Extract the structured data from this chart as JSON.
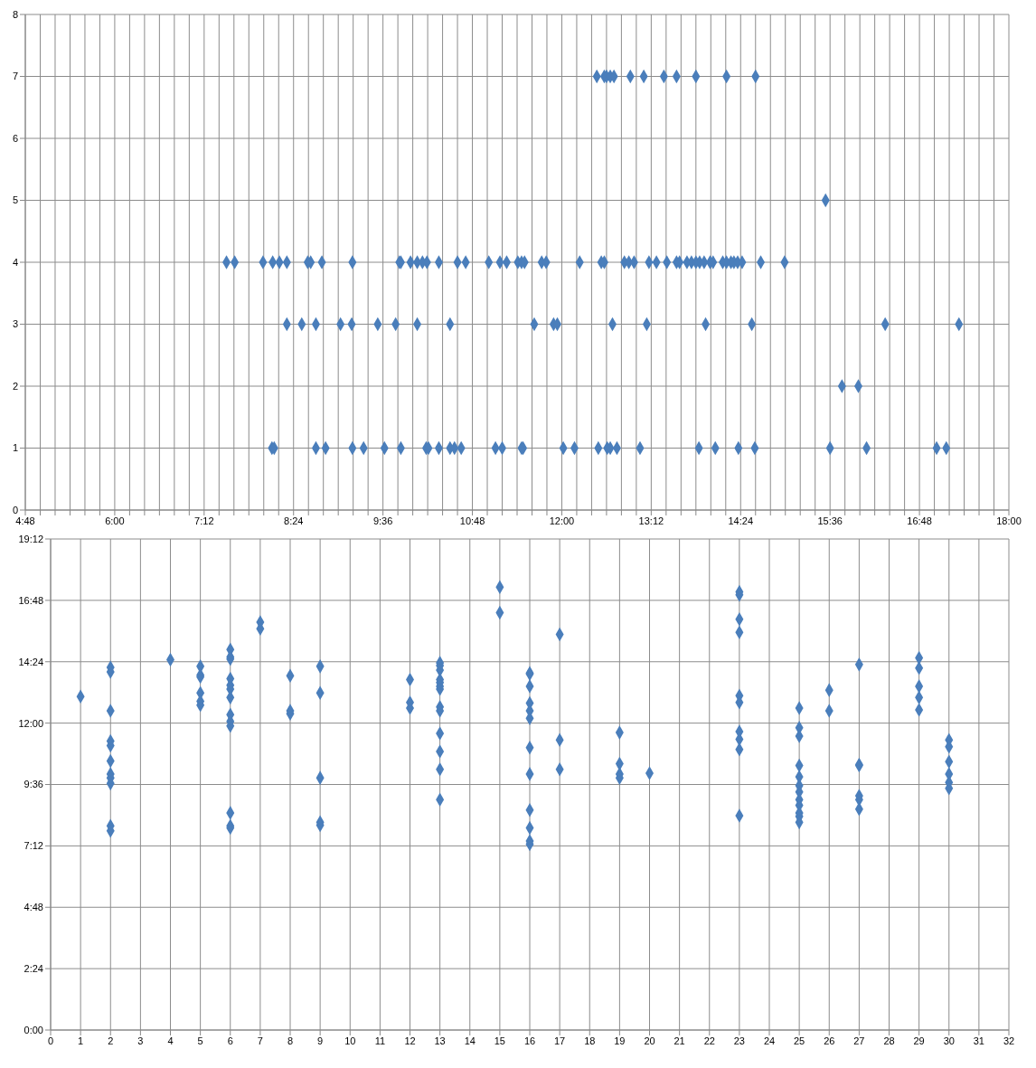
{
  "chart_data": [
    {
      "type": "scatter",
      "color": "#4a7ebb",
      "marker": "diamond",
      "grid": true,
      "x": [
        7.5,
        7.61,
        7.99,
        8.12,
        8.21,
        8.31,
        8.59,
        8.63,
        8.78,
        9.19,
        9.82,
        9.84,
        9.97,
        10.06,
        10.13,
        10.19,
        10.35,
        10.6,
        10.71,
        11.02,
        11.17,
        11.26,
        11.41,
        11.46,
        11.5,
        11.73,
        11.79,
        12.24,
        12.53,
        12.57,
        12.84,
        12.9,
        12.97,
        13.17,
        13.27,
        13.41,
        13.54,
        13.58,
        13.68,
        13.74,
        13.8,
        13.85,
        13.91,
        13.99,
        14.03,
        14.16,
        14.21,
        14.27,
        14.31,
        14.36,
        14.42,
        14.67,
        14.99,
        12.47,
        12.57,
        12.6,
        12.65,
        12.7,
        12.92,
        13.1,
        13.37,
        13.54,
        13.8,
        14.21,
        14.6,
        15.54,
        8.31,
        8.51,
        8.7,
        9.03,
        9.18,
        9.53,
        9.77,
        10.06,
        10.5,
        11.63,
        11.89,
        11.94,
        12.68,
        13.14,
        13.93,
        14.55,
        16.34,
        17.33,
        15.76,
        15.98,
        8.11,
        8.14,
        8.7,
        8.83,
        9.19,
        9.34,
        9.62,
        9.84,
        10.18,
        10.21,
        10.35,
        10.5,
        10.56,
        10.65,
        11.11,
        11.2,
        11.46,
        11.48,
        12.02,
        12.17,
        12.49,
        12.61,
        12.65,
        12.74,
        13.05,
        13.84,
        14.06,
        14.37,
        14.59,
        15.6,
        16.09,
        17.03,
        17.16
      ],
      "values": [
        4,
        4,
        4,
        4,
        4,
        4,
        4,
        4,
        4,
        4,
        4,
        4,
        4,
        4,
        4,
        4,
        4,
        4,
        4,
        4,
        4,
        4,
        4,
        4,
        4,
        4,
        4,
        4,
        4,
        4,
        4,
        4,
        4,
        4,
        4,
        4,
        4,
        4,
        4,
        4,
        4,
        4,
        4,
        4,
        4,
        4,
        4,
        4,
        4,
        4,
        4,
        4,
        4,
        7,
        7,
        7,
        7,
        7,
        7,
        7,
        7,
        7,
        7,
        7,
        7,
        5,
        3,
        3,
        3,
        3,
        3,
        3,
        3,
        3,
        3,
        3,
        3,
        3,
        3,
        3,
        3,
        3,
        3,
        3,
        2,
        2,
        1,
        1,
        1,
        1,
        1,
        1,
        1,
        1,
        1,
        1,
        1,
        1,
        1,
        1,
        1,
        1,
        1,
        1,
        1,
        1,
        1,
        1,
        1,
        1,
        1,
        1,
        1,
        1,
        1,
        1,
        1,
        1,
        1
      ],
      "xlim": [
        4.8,
        18
      ],
      "xticks": [
        {
          "value": 4.8,
          "label": "4:48"
        },
        {
          "value": 5.0,
          "label": null
        },
        {
          "value": 5.2,
          "label": null
        },
        {
          "value": 5.4,
          "label": null
        },
        {
          "value": 5.6,
          "label": null
        },
        {
          "value": 5.8,
          "label": null
        },
        {
          "value": 6.0,
          "label": "6:00"
        },
        {
          "value": 6.2,
          "label": null
        },
        {
          "value": 6.4,
          "label": null
        },
        {
          "value": 6.6,
          "label": null
        },
        {
          "value": 6.8,
          "label": null
        },
        {
          "value": 7.0,
          "label": null
        },
        {
          "value": 7.2,
          "label": "7:12"
        },
        {
          "value": 7.4,
          "label": null
        },
        {
          "value": 7.6,
          "label": null
        },
        {
          "value": 7.8,
          "label": null
        },
        {
          "value": 8.0,
          "label": null
        },
        {
          "value": 8.2,
          "label": null
        },
        {
          "value": 8.4,
          "label": "8:24"
        },
        {
          "value": 8.6,
          "label": null
        },
        {
          "value": 8.8,
          "label": null
        },
        {
          "value": 9.0,
          "label": null
        },
        {
          "value": 9.2,
          "label": null
        },
        {
          "value": 9.4,
          "label": null
        },
        {
          "value": 9.6,
          "label": "9:36"
        },
        {
          "value": 9.8,
          "label": null
        },
        {
          "value": 10.0,
          "label": null
        },
        {
          "value": 10.2,
          "label": null
        },
        {
          "value": 10.4,
          "label": null
        },
        {
          "value": 10.6,
          "label": null
        },
        {
          "value": 10.8,
          "label": "10:48"
        },
        {
          "value": 11.0,
          "label": null
        },
        {
          "value": 11.2,
          "label": null
        },
        {
          "value": 11.4,
          "label": null
        },
        {
          "value": 11.6,
          "label": null
        },
        {
          "value": 11.8,
          "label": null
        },
        {
          "value": 12.0,
          "label": "12:00"
        },
        {
          "value": 12.2,
          "label": null
        },
        {
          "value": 12.4,
          "label": null
        },
        {
          "value": 12.6,
          "label": null
        },
        {
          "value": 12.8,
          "label": null
        },
        {
          "value": 13.0,
          "label": null
        },
        {
          "value": 13.2,
          "label": "13:12"
        },
        {
          "value": 13.4,
          "label": null
        },
        {
          "value": 13.6,
          "label": null
        },
        {
          "value": 13.8,
          "label": null
        },
        {
          "value": 14.0,
          "label": null
        },
        {
          "value": 14.2,
          "label": null
        },
        {
          "value": 14.4,
          "label": "14:24"
        },
        {
          "value": 14.6,
          "label": null
        },
        {
          "value": 14.8,
          "label": null
        },
        {
          "value": 15.0,
          "label": null
        },
        {
          "value": 15.2,
          "label": null
        },
        {
          "value": 15.4,
          "label": null
        },
        {
          "value": 15.6,
          "label": "15:36"
        },
        {
          "value": 15.8,
          "label": null
        },
        {
          "value": 16.0,
          "label": null
        },
        {
          "value": 16.2,
          "label": null
        },
        {
          "value": 16.4,
          "label": null
        },
        {
          "value": 16.6,
          "label": null
        },
        {
          "value": 16.8,
          "label": "16:48"
        },
        {
          "value": 17.0,
          "label": null
        },
        {
          "value": 17.2,
          "label": null
        },
        {
          "value": 17.4,
          "label": null
        },
        {
          "value": 17.6,
          "label": null
        },
        {
          "value": 17.8,
          "label": null
        },
        {
          "value": 18.0,
          "label": "18:00"
        }
      ],
      "ylim": [
        0,
        8
      ],
      "yticks": [
        0,
        1,
        2,
        3,
        4,
        5,
        6,
        7,
        8
      ]
    },
    {
      "type": "scatter",
      "color": "#4a7ebb",
      "marker": "diamond",
      "grid": true,
      "x": [
        1,
        2,
        2,
        2,
        2,
        2,
        2,
        2,
        2,
        2,
        2,
        2,
        4,
        5,
        5,
        5,
        5,
        5,
        5,
        6,
        6,
        6,
        6,
        6,
        6,
        6,
        6,
        6,
        6,
        6,
        6,
        6,
        7,
        7,
        8,
        8,
        8,
        9,
        9,
        9,
        9,
        9,
        12,
        12,
        12,
        13,
        13,
        13,
        13,
        13,
        13,
        13,
        13,
        13,
        13,
        13,
        13,
        13,
        15,
        15,
        16,
        16,
        16,
        16,
        16,
        16,
        16,
        16,
        16,
        16,
        16,
        16,
        17,
        17,
        17,
        19,
        19,
        19,
        19,
        20,
        23,
        23,
        23,
        23,
        23,
        23,
        23,
        23,
        23,
        23,
        25,
        25,
        25,
        25,
        25,
        25,
        25,
        25,
        25,
        25,
        25,
        25,
        26,
        26,
        27,
        27,
        27,
        27,
        27,
        27,
        29,
        29,
        29,
        29,
        29,
        30,
        30,
        30,
        30,
        30,
        30
      ],
      "values": [
        13.04,
        14.18,
        14.0,
        12.48,
        11.3,
        11.12,
        10.52,
        10.01,
        9.86,
        9.64,
        7.98,
        7.79,
        14.48,
        14.22,
        13.88,
        13.81,
        13.18,
        12.85,
        12.7,
        14.88,
        14.59,
        14.51,
        13.74,
        13.48,
        13.33,
        13.0,
        12.33,
        12.07,
        11.89,
        8.49,
        7.98,
        7.9,
        15.95,
        15.69,
        13.85,
        12.48,
        12.37,
        14.22,
        13.18,
        9.86,
        8.12,
        8.01,
        13.7,
        12.81,
        12.59,
        14.36,
        14.25,
        14.07,
        13.7,
        13.59,
        13.44,
        13.33,
        12.63,
        12.48,
        11.6,
        10.89,
        10.19,
        9.01,
        17.32,
        16.32,
        13.96,
        13.92,
        13.44,
        12.78,
        12.48,
        12.19,
        11.04,
        10.01,
        8.6,
        7.9,
        7.39,
        7.27,
        15.47,
        11.34,
        10.19,
        11.63,
        10.41,
        10.01,
        9.86,
        10.04,
        17.13,
        17.02,
        16.06,
        15.55,
        13.07,
        12.81,
        11.67,
        11.37,
        10.97,
        8.38,
        12.59,
        11.82,
        11.49,
        10.34,
        9.9,
        9.56,
        9.31,
        9.01,
        8.79,
        8.49,
        8.35,
        8.12,
        13.29,
        12.48,
        14.29,
        10.38,
        10.34,
        9.16,
        9.01,
        8.64,
        14.55,
        14.15,
        13.44,
        13.0,
        12.52,
        11.34,
        11.08,
        10.49,
        10.01,
        9.68,
        9.45
      ],
      "xlim": [
        0,
        32
      ],
      "xticks": [
        0,
        1,
        2,
        3,
        4,
        5,
        6,
        7,
        8,
        9,
        10,
        11,
        12,
        13,
        14,
        15,
        16,
        17,
        18,
        19,
        20,
        21,
        22,
        23,
        24,
        25,
        26,
        27,
        28,
        29,
        30,
        31,
        32
      ],
      "ylim": [
        0,
        19.2
      ],
      "yticks": [
        {
          "value": 0,
          "label": "0:00"
        },
        {
          "value": 2.4,
          "label": "2:24"
        },
        {
          "value": 4.8,
          "label": "4:48"
        },
        {
          "value": 7.2,
          "label": "7:12"
        },
        {
          "value": 9.6,
          "label": "9:36"
        },
        {
          "value": 12,
          "label": "12:00"
        },
        {
          "value": 14.4,
          "label": "14:24"
        },
        {
          "value": 16.8,
          "label": "16:48"
        },
        {
          "value": 19.2,
          "label": "19:12"
        }
      ]
    }
  ]
}
